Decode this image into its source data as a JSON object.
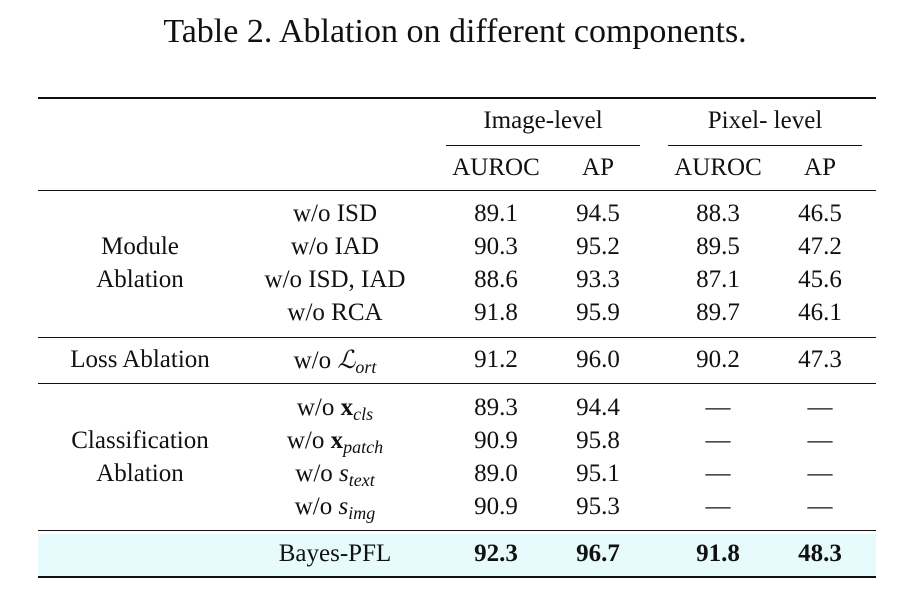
{
  "caption": "Table 2. Ablation on different components.",
  "header": {
    "image_level": "Image-level",
    "pixel_level": "Pixel- level",
    "auroc": "AUROC",
    "ap": "AP"
  },
  "groups": {
    "module": [
      "Module",
      "Ablation"
    ],
    "loss": "Loss Ablation",
    "classification": [
      "Classification",
      "Ablation"
    ]
  },
  "rows": [
    {
      "method": "w/o ISD",
      "img_auroc": "89.1",
      "img_ap": "94.5",
      "pix_auroc": "88.3",
      "pix_ap": "46.5"
    },
    {
      "method": "w/o IAD",
      "img_auroc": "90.3",
      "img_ap": "95.2",
      "pix_auroc": "89.5",
      "pix_ap": "47.2"
    },
    {
      "method": "w/o ISD, IAD",
      "img_auroc": "88.6",
      "img_ap": "93.3",
      "pix_auroc": "87.1",
      "pix_ap": "45.6"
    },
    {
      "method": "w/o RCA",
      "img_auroc": "91.8",
      "img_ap": "95.9",
      "pix_auroc": "89.7",
      "pix_ap": "46.1"
    },
    {
      "method_prefix": "w/o ",
      "method_sym": "ℒ",
      "method_sub": "ort",
      "img_auroc": "91.2",
      "img_ap": "96.0",
      "pix_auroc": "90.2",
      "pix_ap": "47.3"
    },
    {
      "method_prefix": "w/o ",
      "method_sym": "x",
      "method_sub": "cls",
      "img_auroc": "89.3",
      "img_ap": "94.4",
      "pix_auroc": "—",
      "pix_ap": "—"
    },
    {
      "method_prefix": "w/o ",
      "method_sym": "x",
      "method_sub": "patch",
      "img_auroc": "90.9",
      "img_ap": "95.8",
      "pix_auroc": "—",
      "pix_ap": "—"
    },
    {
      "method_prefix": "w/o ",
      "method_sym": "s",
      "method_sub": "text",
      "img_auroc": "89.0",
      "img_ap": "95.1",
      "pix_auroc": "—",
      "pix_ap": "—"
    },
    {
      "method_prefix": "w/o ",
      "method_sym": "s",
      "method_sub": "img",
      "img_auroc": "90.9",
      "img_ap": "95.3",
      "pix_auroc": "—",
      "pix_ap": "—"
    }
  ],
  "final": {
    "method": "Bayes-PFL",
    "img_auroc": "92.3",
    "img_ap": "96.7",
    "pix_auroc": "91.8",
    "pix_ap": "48.3"
  },
  "colors": {
    "highlight_row": "#e7fbfc",
    "rule": "#111111"
  }
}
